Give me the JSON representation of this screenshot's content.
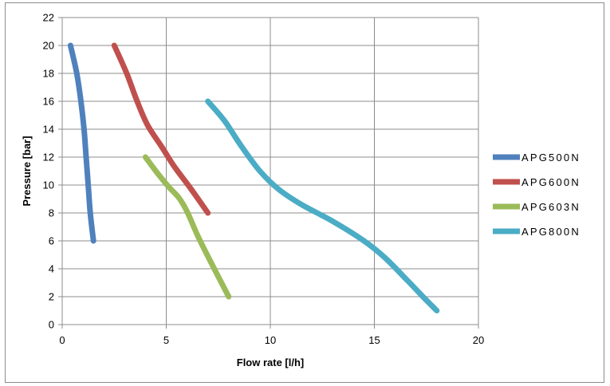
{
  "chart_data": {
    "type": "line",
    "title": "",
    "xlabel": "Flow rate [l/h]",
    "ylabel": "Pressure [bar]",
    "xlim": [
      0,
      20
    ],
    "ylim": [
      0,
      22
    ],
    "x_ticks": [
      0,
      5,
      10,
      15,
      20
    ],
    "y_ticks": [
      0,
      2,
      4,
      6,
      8,
      10,
      12,
      14,
      16,
      18,
      20,
      22
    ],
    "grid": true,
    "legend_position": "right",
    "series": [
      {
        "name": "APG500N",
        "color": "#4f81bd",
        "points": [
          [
            0.4,
            20
          ],
          [
            0.7,
            18
          ],
          [
            0.9,
            16
          ],
          [
            1.05,
            14
          ],
          [
            1.15,
            12
          ],
          [
            1.25,
            10
          ],
          [
            1.35,
            8
          ],
          [
            1.5,
            6
          ]
        ]
      },
      {
        "name": "APG600N",
        "color": "#c0504d",
        "points": [
          [
            2.5,
            20
          ],
          [
            3.1,
            18
          ],
          [
            3.6,
            16
          ],
          [
            4.1,
            14.3
          ],
          [
            4.8,
            12.7
          ],
          [
            5.4,
            11.3
          ],
          [
            6.2,
            9.7
          ],
          [
            7.0,
            8
          ]
        ]
      },
      {
        "name": "APG603N",
        "color": "#9bbb59",
        "points": [
          [
            4.0,
            12
          ],
          [
            4.5,
            11
          ],
          [
            5.1,
            9.9
          ],
          [
            5.6,
            9.1
          ],
          [
            6.0,
            8.1
          ],
          [
            6.5,
            6.4
          ],
          [
            7.1,
            4.6
          ],
          [
            8.0,
            2
          ]
        ]
      },
      {
        "name": "APG800N",
        "color": "#4bacc6",
        "points": [
          [
            7.0,
            16
          ],
          [
            7.8,
            14.6
          ],
          [
            8.6,
            12.8
          ],
          [
            9.5,
            11
          ],
          [
            10.4,
            9.7
          ],
          [
            11.5,
            8.6
          ],
          [
            13.0,
            7.4
          ],
          [
            14.5,
            6.0
          ],
          [
            15.5,
            4.8
          ],
          [
            16.5,
            3.3
          ],
          [
            17.4,
            1.9
          ],
          [
            18.0,
            1
          ]
        ]
      }
    ]
  }
}
